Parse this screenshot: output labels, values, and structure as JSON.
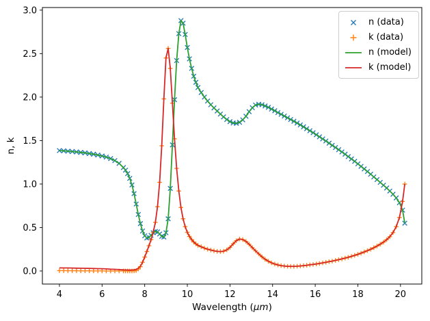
{
  "figure": {
    "xlabel_prefix": "Wavelength (",
    "xlabel_math": "μm",
    "xlabel_suffix": ")"
  },
  "chart_data": {
    "type": "line+scatter",
    "title": "",
    "xlabel": "Wavelength (μm)",
    "ylabel": "n, k",
    "xlim": [
      3.2,
      21.0
    ],
    "ylim": [
      -0.15,
      3.03
    ],
    "xticks": [
      4,
      6,
      8,
      10,
      12,
      14,
      16,
      18,
      20
    ],
    "yticks": [
      0.0,
      0.5,
      1.0,
      1.5,
      2.0,
      2.5,
      3.0
    ],
    "grid": false,
    "legend_position": "upper right",
    "series": [
      {
        "name": "n (data)",
        "type": "scatter",
        "marker": "x",
        "color": "#1f77b4",
        "values_key": "n"
      },
      {
        "name": "k (data)",
        "type": "scatter",
        "marker": "plus",
        "color": "#ff7f0e",
        "values_key": "k_data"
      },
      {
        "name": "n (model)",
        "type": "line",
        "color": "#2ca02c",
        "values_key": "n"
      },
      {
        "name": "k (model)",
        "type": "line",
        "color": "#d62728",
        "values_key": "k_model"
      }
    ],
    "x": [
      4.0,
      4.2,
      4.4,
      4.6,
      4.8,
      5.0,
      5.2,
      5.4,
      5.6,
      5.8,
      6.0,
      6.2,
      6.4,
      6.6,
      6.8,
      7.0,
      7.1,
      7.2,
      7.3,
      7.4,
      7.5,
      7.6,
      7.7,
      7.8,
      7.9,
      8.0,
      8.1,
      8.2,
      8.3,
      8.4,
      8.5,
      8.6,
      8.7,
      8.8,
      8.9,
      9.0,
      9.1,
      9.2,
      9.3,
      9.4,
      9.5,
      9.6,
      9.7,
      9.8,
      9.9,
      10.0,
      10.1,
      10.2,
      10.3,
      10.4,
      10.5,
      10.65,
      10.8,
      10.95,
      11.1,
      11.25,
      11.4,
      11.55,
      11.7,
      11.85,
      12.0,
      12.15,
      12.3,
      12.45,
      12.6,
      12.75,
      12.9,
      13.05,
      13.2,
      13.35,
      13.5,
      13.65,
      13.8,
      13.95,
      14.1,
      14.25,
      14.4,
      14.55,
      14.7,
      14.85,
      15.0,
      15.15,
      15.3,
      15.45,
      15.6,
      15.75,
      15.9,
      16.05,
      16.2,
      16.35,
      16.5,
      16.65,
      16.8,
      16.95,
      17.1,
      17.25,
      17.4,
      17.55,
      17.7,
      17.85,
      18.0,
      18.15,
      18.3,
      18.45,
      18.6,
      18.75,
      18.9,
      19.05,
      19.2,
      19.35,
      19.5,
      19.65,
      19.8,
      19.95,
      20.1,
      20.2
    ],
    "values": {
      "n": [
        1.385,
        1.382,
        1.378,
        1.374,
        1.369,
        1.364,
        1.358,
        1.351,
        1.343,
        1.334,
        1.323,
        1.31,
        1.293,
        1.27,
        1.238,
        1.19,
        1.16,
        1.12,
        1.065,
        0.99,
        0.89,
        0.77,
        0.65,
        0.545,
        0.46,
        0.405,
        0.38,
        0.385,
        0.41,
        0.44,
        0.455,
        0.45,
        0.425,
        0.398,
        0.39,
        0.44,
        0.6,
        0.95,
        1.45,
        1.97,
        2.42,
        2.73,
        2.88,
        2.85,
        2.72,
        2.57,
        2.44,
        2.33,
        2.24,
        2.17,
        2.11,
        2.052,
        2.0,
        1.955,
        1.912,
        1.875,
        1.84,
        1.805,
        1.772,
        1.742,
        1.718,
        1.702,
        1.698,
        1.71,
        1.738,
        1.78,
        1.832,
        1.878,
        1.908,
        1.918,
        1.912,
        1.898,
        1.882,
        1.863,
        1.843,
        1.822,
        1.802,
        1.782,
        1.762,
        1.742,
        1.722,
        1.701,
        1.68,
        1.658,
        1.636,
        1.613,
        1.59,
        1.567,
        1.543,
        1.519,
        1.495,
        1.47,
        1.445,
        1.42,
        1.395,
        1.369,
        1.343,
        1.316,
        1.289,
        1.261,
        1.232,
        1.203,
        1.174,
        1.144,
        1.113,
        1.082,
        1.051,
        1.019,
        0.987,
        0.954,
        0.92,
        0.883,
        0.84,
        0.785,
        0.7,
        0.55
      ],
      "k_data": [
        0.004,
        0.004,
        0.003,
        0.003,
        0.003,
        0.002,
        0.002,
        0.002,
        0.001,
        0.001,
        0.001,
        0.0,
        0.0,
        0.0,
        0.0,
        0.0,
        0.0,
        0.0,
        0.0,
        0.0,
        0.001,
        0.006,
        0.022,
        0.05,
        0.1,
        0.16,
        0.225,
        0.29,
        0.36,
        0.445,
        0.56,
        0.74,
        1.02,
        1.44,
        1.98,
        2.45,
        2.56,
        2.33,
        1.93,
        1.52,
        1.18,
        0.92,
        0.73,
        0.6,
        0.51,
        0.445,
        0.398,
        0.362,
        0.333,
        0.312,
        0.295,
        0.278,
        0.263,
        0.251,
        0.241,
        0.232,
        0.226,
        0.223,
        0.227,
        0.243,
        0.272,
        0.312,
        0.348,
        0.368,
        0.362,
        0.34,
        0.307,
        0.269,
        0.232,
        0.196,
        0.163,
        0.135,
        0.112,
        0.094,
        0.08,
        0.07,
        0.062,
        0.057,
        0.054,
        0.053,
        0.053,
        0.055,
        0.058,
        0.062,
        0.066,
        0.071,
        0.076,
        0.081,
        0.087,
        0.093,
        0.1,
        0.107,
        0.114,
        0.122,
        0.13,
        0.139,
        0.148,
        0.158,
        0.169,
        0.18,
        0.192,
        0.205,
        0.219,
        0.234,
        0.25,
        0.268,
        0.287,
        0.308,
        0.332,
        0.36,
        0.395,
        0.442,
        0.51,
        0.615,
        0.8,
        1.0
      ],
      "k_model": [
        0.036,
        0.035,
        0.035,
        0.034,
        0.033,
        0.032,
        0.031,
        0.03,
        0.029,
        0.027,
        0.026,
        0.024,
        0.021,
        0.019,
        0.016,
        0.013,
        0.012,
        0.011,
        0.01,
        0.011,
        0.013,
        0.018,
        0.03,
        0.055,
        0.1,
        0.16,
        0.225,
        0.29,
        0.36,
        0.445,
        0.56,
        0.74,
        1.02,
        1.44,
        1.98,
        2.45,
        2.56,
        2.33,
        1.93,
        1.52,
        1.18,
        0.92,
        0.73,
        0.6,
        0.51,
        0.445,
        0.398,
        0.362,
        0.333,
        0.312,
        0.295,
        0.278,
        0.263,
        0.251,
        0.241,
        0.232,
        0.226,
        0.223,
        0.227,
        0.243,
        0.272,
        0.312,
        0.348,
        0.368,
        0.362,
        0.34,
        0.307,
        0.269,
        0.232,
        0.196,
        0.163,
        0.135,
        0.112,
        0.094,
        0.08,
        0.07,
        0.062,
        0.057,
        0.054,
        0.053,
        0.053,
        0.055,
        0.058,
        0.062,
        0.066,
        0.071,
        0.076,
        0.081,
        0.087,
        0.093,
        0.1,
        0.107,
        0.114,
        0.122,
        0.13,
        0.139,
        0.148,
        0.158,
        0.169,
        0.18,
        0.192,
        0.205,
        0.219,
        0.234,
        0.25,
        0.268,
        0.287,
        0.308,
        0.332,
        0.36,
        0.395,
        0.442,
        0.51,
        0.615,
        0.8,
        1.0
      ]
    }
  }
}
